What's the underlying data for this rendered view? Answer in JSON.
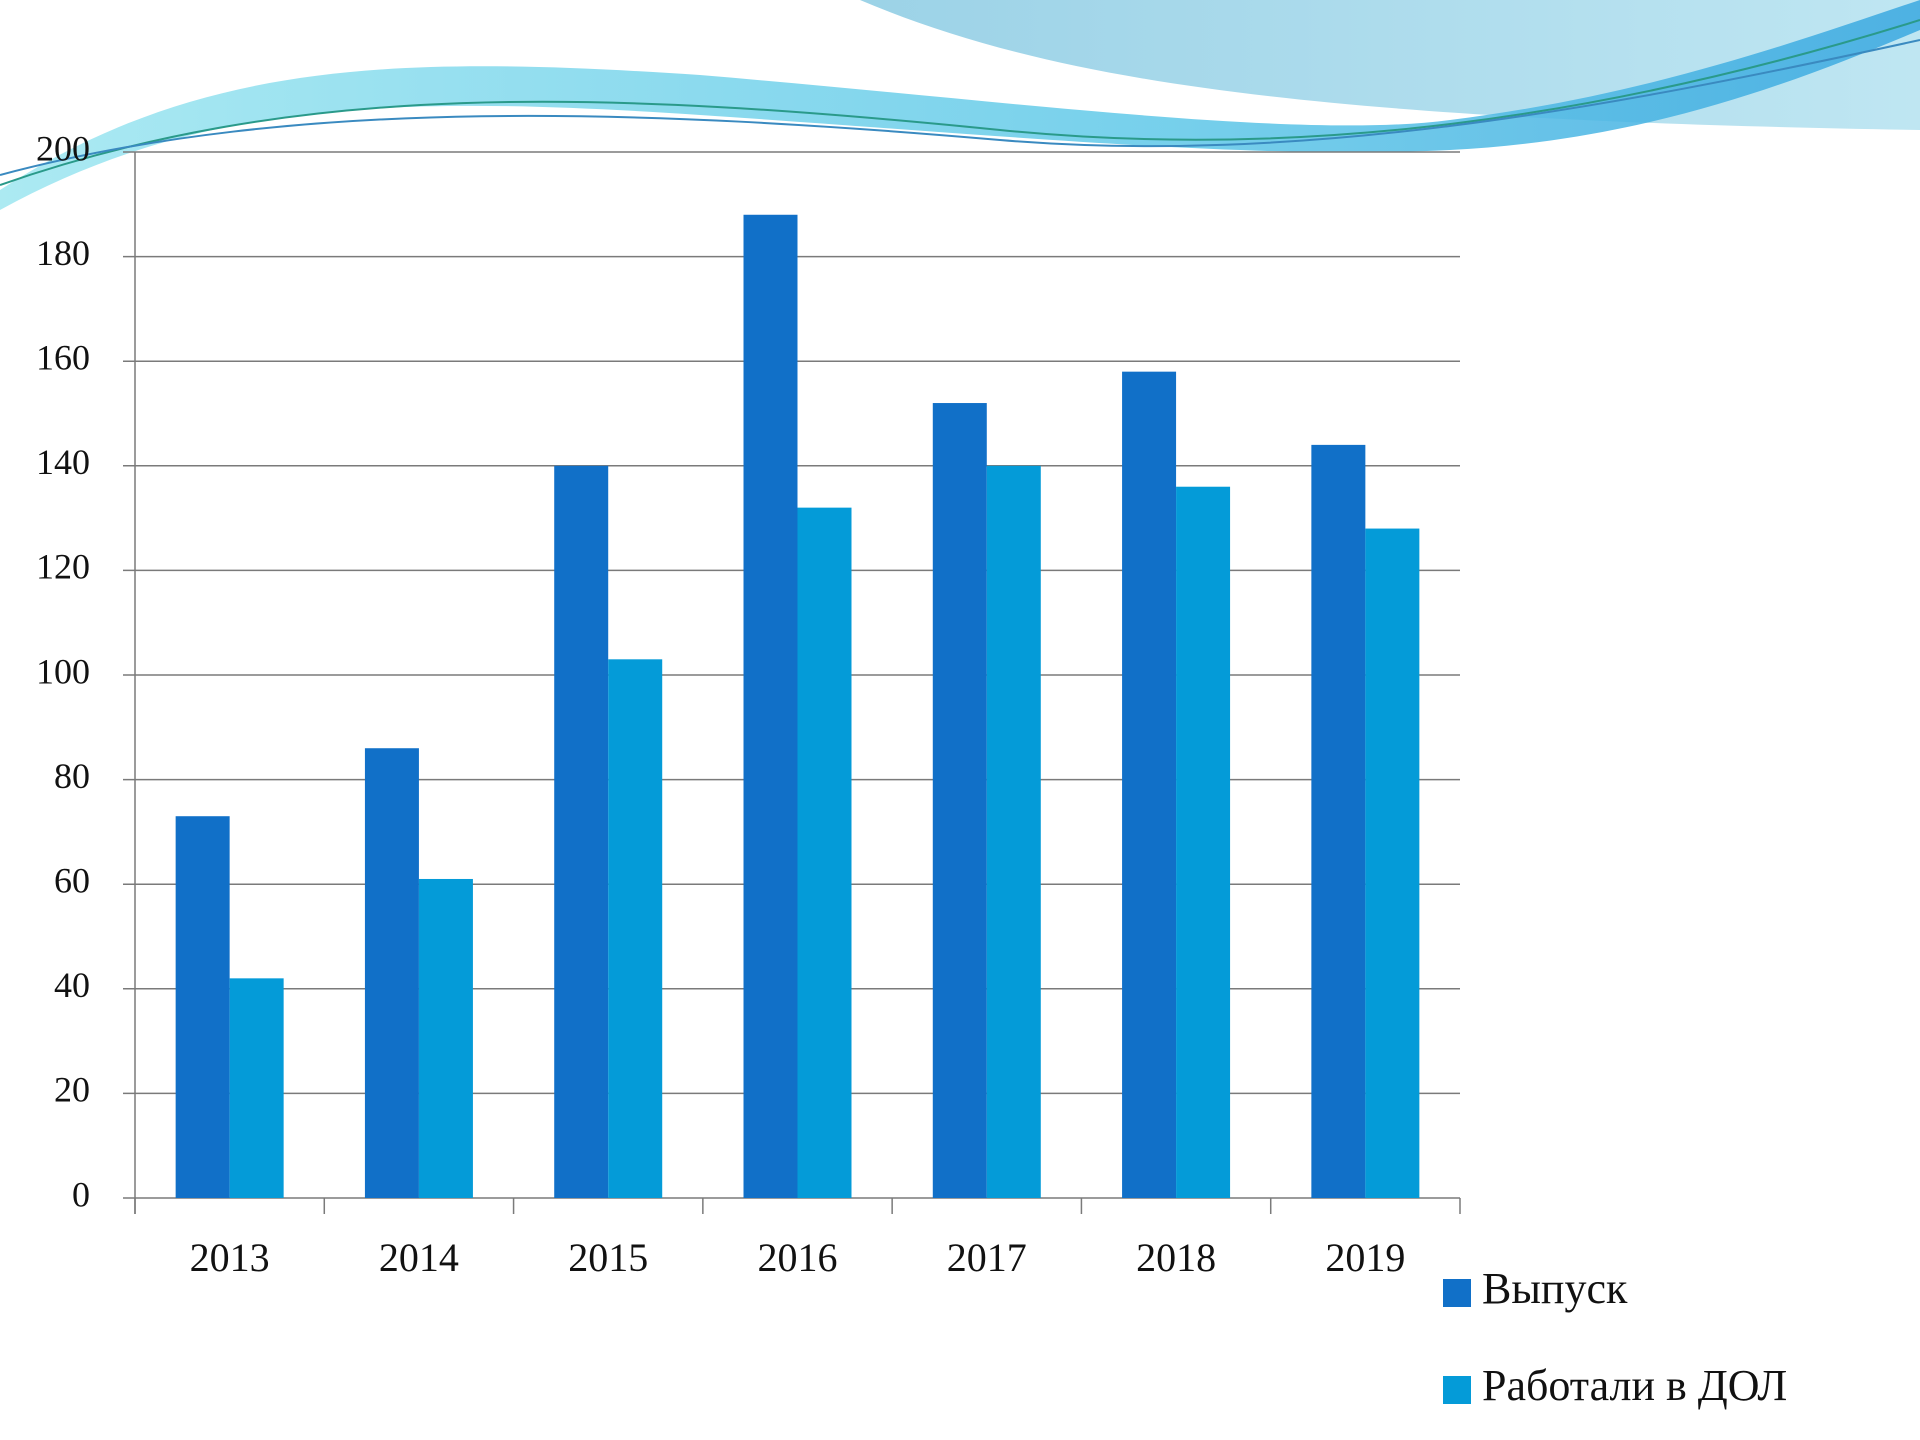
{
  "chart_data": {
    "type": "bar",
    "categories": [
      "2013",
      "2014",
      "2015",
      "2016",
      "2017",
      "2018",
      "2019"
    ],
    "series": [
      {
        "name": "Выпуск",
        "color": "#1170c8",
        "values": [
          73,
          86,
          140,
          188,
          152,
          158,
          144
        ]
      },
      {
        "name": "Работали в ДОЛ",
        "color": "#049bd8",
        "values": [
          42,
          61,
          103,
          132,
          140,
          136,
          128
        ]
      }
    ],
    "ylim": [
      0,
      200
    ],
    "yticks": [
      0,
      20,
      40,
      60,
      80,
      100,
      120,
      140,
      160,
      180,
      200
    ],
    "grid": true,
    "legend": "right"
  }
}
